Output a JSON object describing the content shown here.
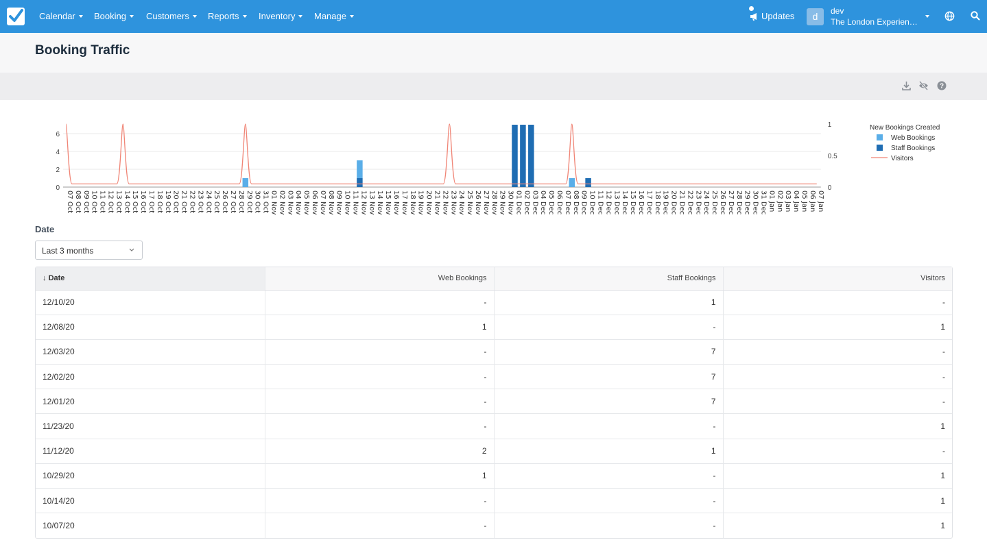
{
  "nav": {
    "items": [
      "Calendar",
      "Booking",
      "Customers",
      "Reports",
      "Inventory",
      "Manage"
    ],
    "updates_label": "Updates",
    "avatar_letter": "d",
    "user_name": "dev",
    "user_org": "The London Experience Tours"
  },
  "page": {
    "title": "Booking Traffic"
  },
  "filter": {
    "label": "Date",
    "selected": "Last 3 months"
  },
  "chart_data": {
    "type": "bar",
    "x": [
      "07 Oct",
      "08 Oct",
      "09 Oct",
      "10 Oct",
      "11 Oct",
      "12 Oct",
      "13 Oct",
      "14 Oct",
      "15 Oct",
      "16 Oct",
      "17 Oct",
      "18 Oct",
      "19 Oct",
      "20 Oct",
      "21 Oct",
      "22 Oct",
      "23 Oct",
      "24 Oct",
      "25 Oct",
      "26 Oct",
      "27 Oct",
      "28 Oct",
      "29 Oct",
      "30 Oct",
      "31 Oct",
      "01 Nov",
      "02 Nov",
      "03 Nov",
      "04 Nov",
      "05 Nov",
      "06 Nov",
      "07 Nov",
      "08 Nov",
      "09 Nov",
      "10 Nov",
      "11 Nov",
      "12 Nov",
      "13 Nov",
      "14 Nov",
      "15 Nov",
      "16 Nov",
      "17 Nov",
      "18 Nov",
      "19 Nov",
      "20 Nov",
      "21 Nov",
      "22 Nov",
      "23 Nov",
      "24 Nov",
      "25 Nov",
      "26 Nov",
      "27 Nov",
      "28 Nov",
      "29 Nov",
      "30 Nov",
      "01 Dec",
      "02 Dec",
      "03 Dec",
      "04 Dec",
      "05 Dec",
      "06 Dec",
      "07 Dec",
      "08 Dec",
      "09 Dec",
      "10 Dec",
      "11 Dec",
      "12 Dec",
      "13 Dec",
      "14 Dec",
      "15 Dec",
      "16 Dec",
      "17 Dec",
      "18 Dec",
      "19 Dec",
      "20 Dec",
      "21 Dec",
      "22 Dec",
      "23 Dec",
      "24 Dec",
      "25 Dec",
      "26 Dec",
      "27 Dec",
      "28 Dec",
      "29 Dec",
      "30 Dec",
      "31 Dec",
      "01 Jan",
      "02 Jan",
      "03 Jan",
      "04 Jan",
      "05 Jan",
      "06 Jan",
      "07 Jan"
    ],
    "series": [
      {
        "name": "Web Bookings",
        "type": "bar",
        "color": "#5aaee8",
        "points": {
          "29 Oct": 1,
          "12 Nov": 2,
          "08 Dec": 1
        }
      },
      {
        "name": "Staff Bookings",
        "type": "bar",
        "color": "#1f6db3",
        "points": {
          "12 Nov": 1,
          "01 Dec": 7,
          "02 Dec": 7,
          "03 Dec": 7,
          "10 Dec": 1
        }
      },
      {
        "name": "Visitors",
        "type": "line",
        "axis": "right",
        "color": "#f08576",
        "points": {
          "07 Oct": 1,
          "14 Oct": 1,
          "29 Oct": 1,
          "23 Nov": 1,
          "08 Dec": 1
        }
      }
    ],
    "legend_title": "New Bookings Created",
    "legend_position": "right",
    "y_left_ticks": [
      "0",
      "2",
      "4",
      "6"
    ],
    "y_left_range": [
      0,
      7
    ],
    "y_right_ticks": [
      "0",
      "0.5",
      "1"
    ],
    "y_right_range": [
      0,
      1
    ]
  },
  "table": {
    "columns": [
      "Date",
      "Web Bookings",
      "Staff Bookings",
      "Visitors"
    ],
    "rows": [
      [
        "12/10/20",
        "-",
        "1",
        "-"
      ],
      [
        "12/08/20",
        "1",
        "-",
        "1"
      ],
      [
        "12/03/20",
        "-",
        "7",
        "-"
      ],
      [
        "12/02/20",
        "-",
        "7",
        "-"
      ],
      [
        "12/01/20",
        "-",
        "7",
        "-"
      ],
      [
        "11/23/20",
        "-",
        "-",
        "1"
      ],
      [
        "11/12/20",
        "2",
        "1",
        "-"
      ],
      [
        "10/29/20",
        "1",
        "-",
        "1"
      ],
      [
        "10/14/20",
        "-",
        "-",
        "1"
      ],
      [
        "10/07/20",
        "-",
        "-",
        "1"
      ]
    ]
  }
}
